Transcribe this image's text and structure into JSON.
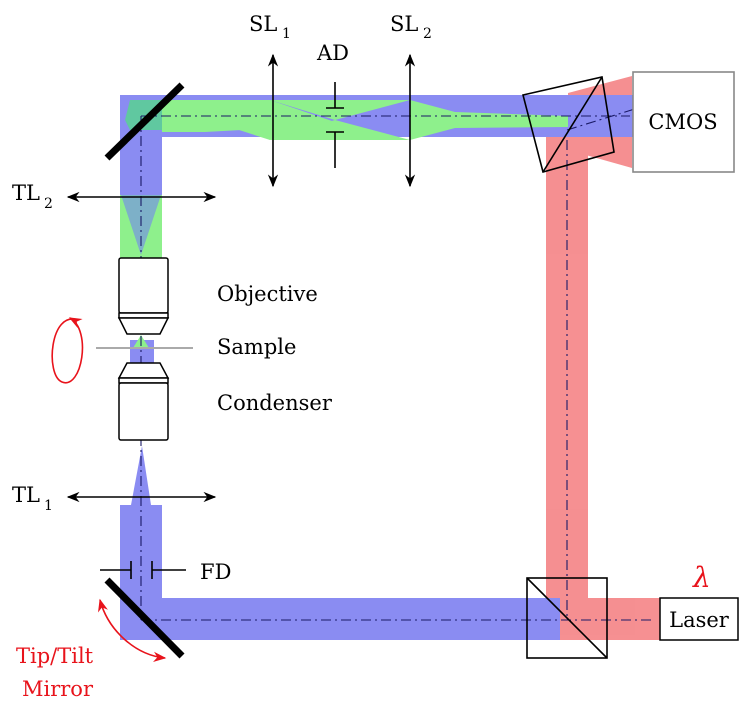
{
  "colors": {
    "blue_beam": "#8a8cf2",
    "green_beam": "#8ef08c",
    "red_beam": "#f58a8c",
    "annotation_red": "#e8131b",
    "outline": "#000000",
    "cmos_border": "#888888"
  },
  "labels": {
    "sl1": "SL",
    "sl1_sub": "1",
    "sl2": "SL",
    "sl2_sub": "2",
    "ad": "AD",
    "cmos": "CMOS",
    "tl2": "TL",
    "tl2_sub": "2",
    "tl1": "TL",
    "tl1_sub": "1",
    "objective": "Objective",
    "sample": "Sample",
    "condenser": "Condenser",
    "fd": "FD",
    "laser": "Laser",
    "lambda": "λ",
    "tip_tilt_line1": "Tip/Tilt",
    "tip_tilt_line2": "Mirror"
  }
}
